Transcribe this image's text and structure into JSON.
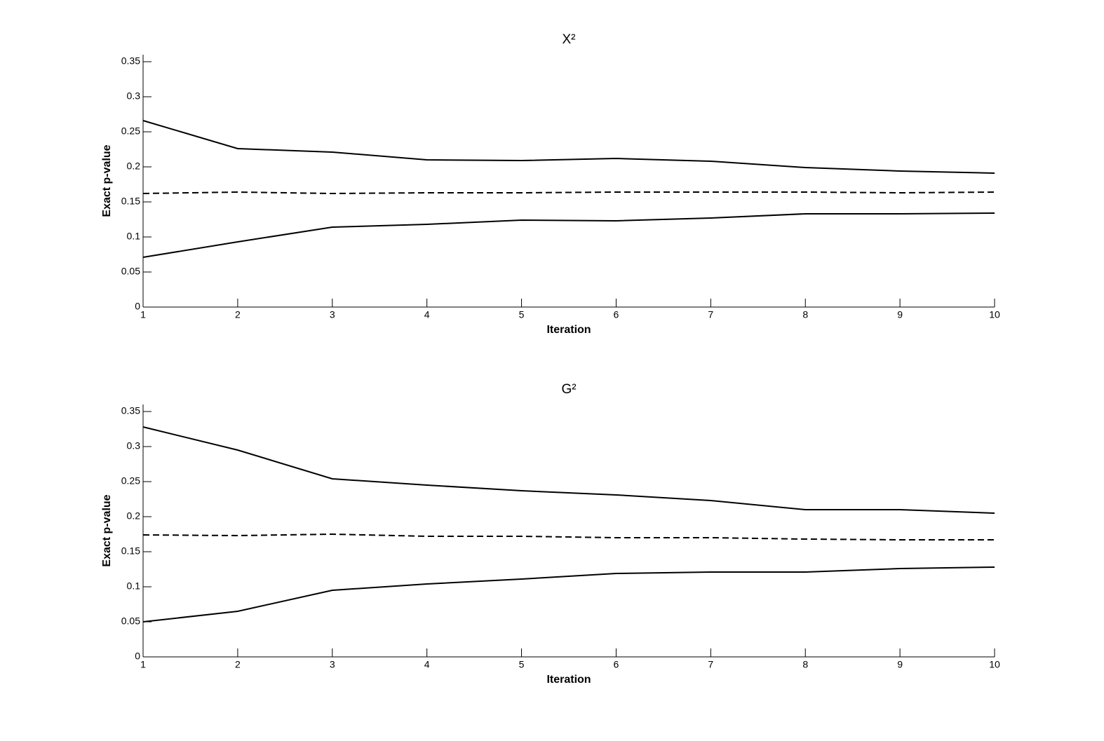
{
  "chart_data": [
    {
      "type": "line",
      "title": "X²",
      "xlabel": "Iteration",
      "ylabel": "Exact p-value",
      "x": [
        1,
        2,
        3,
        4,
        5,
        6,
        7,
        8,
        9,
        10
      ],
      "xlim": [
        1,
        10
      ],
      "xticks": [
        1,
        2,
        3,
        4,
        5,
        6,
        7,
        8,
        9,
        10
      ],
      "ylim": [
        0,
        0.36
      ],
      "yticks": [
        0,
        0.05,
        0.1,
        0.15,
        0.2,
        0.25,
        0.3,
        0.35
      ],
      "series": [
        {
          "color": "#000000",
          "style": "solid",
          "values": [
            0.266,
            0.226,
            0.221,
            0.21,
            0.209,
            0.212,
            0.208,
            0.199,
            0.194,
            0.191
          ]
        },
        {
          "color": "#000000",
          "style": "dashed",
          "values": [
            0.162,
            0.164,
            0.162,
            0.163,
            0.163,
            0.164,
            0.164,
            0.164,
            0.163,
            0.164
          ]
        },
        {
          "color": "#000000",
          "style": "solid",
          "values": [
            0.071,
            0.093,
            0.114,
            0.118,
            0.124,
            0.123,
            0.127,
            0.133,
            0.133,
            0.134
          ]
        }
      ]
    },
    {
      "type": "line",
      "title": "G²",
      "xlabel": "Iteration",
      "ylabel": "Exact p-value",
      "x": [
        1,
        2,
        3,
        4,
        5,
        6,
        7,
        8,
        9,
        10
      ],
      "xlim": [
        1,
        10
      ],
      "xticks": [
        1,
        2,
        3,
        4,
        5,
        6,
        7,
        8,
        9,
        10
      ],
      "ylim": [
        0,
        0.36
      ],
      "yticks": [
        0,
        0.05,
        0.1,
        0.15,
        0.2,
        0.25,
        0.3,
        0.35
      ],
      "series": [
        {
          "color": "#000000",
          "style": "solid",
          "values": [
            0.328,
            0.295,
            0.254,
            0.245,
            0.237,
            0.231,
            0.223,
            0.21,
            0.21,
            0.205
          ]
        },
        {
          "color": "#000000",
          "style": "dashed",
          "values": [
            0.174,
            0.173,
            0.175,
            0.172,
            0.172,
            0.17,
            0.17,
            0.168,
            0.167,
            0.167
          ]
        },
        {
          "color": "#000000",
          "style": "solid",
          "values": [
            0.05,
            0.065,
            0.095,
            0.104,
            0.111,
            0.119,
            0.121,
            0.121,
            0.126,
            0.128
          ]
        }
      ]
    }
  ]
}
